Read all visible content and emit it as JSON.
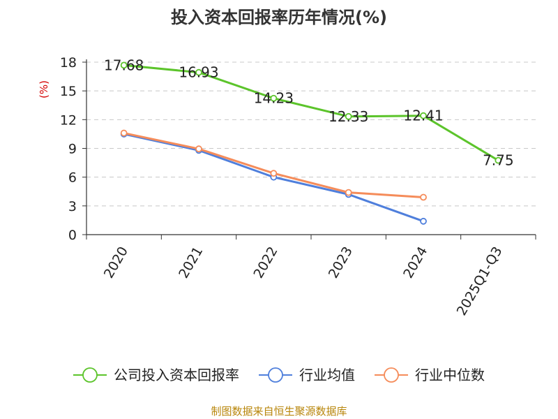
{
  "chart_data": {
    "type": "line",
    "title": "投入资本回报率历年情况(%)",
    "ylabel": "(%)",
    "categories": [
      "2020",
      "2021",
      "2022",
      "2023",
      "2024",
      "2025Q1-Q3"
    ],
    "ylim": [
      0,
      18
    ],
    "yticks": [
      0,
      3,
      6,
      9,
      12,
      15,
      18
    ],
    "grid": true,
    "legend_position": "bottom",
    "series": [
      {
        "name": "公司投入资本回报率",
        "color": "#5cc42b",
        "values": [
          17.68,
          16.93,
          14.23,
          12.33,
          12.41,
          7.75
        ],
        "labels": [
          "17.68",
          "16.93",
          "14.23",
          "12.33",
          "12.41",
          "7.75"
        ]
      },
      {
        "name": "行业均值",
        "color": "#4f7fdc",
        "values": [
          10.5,
          8.8,
          6.0,
          4.2,
          1.4,
          null
        ]
      },
      {
        "name": "行业中位数",
        "color": "#f58c5a",
        "values": [
          10.6,
          8.95,
          6.4,
          4.4,
          3.9,
          null
        ]
      }
    ]
  },
  "source": "制图数据来自恒生聚源数据库"
}
